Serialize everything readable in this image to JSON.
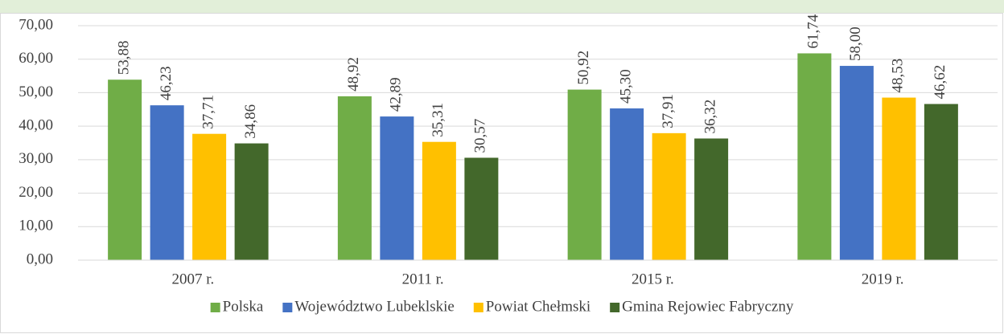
{
  "chart_data": {
    "type": "bar",
    "categories": [
      "2007 r.",
      "2011 r.",
      "2015 r.",
      "2019 r."
    ],
    "series": [
      {
        "name": "Polska",
        "color": "#70ad47",
        "values": [
          53.88,
          48.92,
          50.92,
          61.74
        ],
        "value_labels": [
          "53,88",
          "48,92",
          "50,92",
          "61,74"
        ]
      },
      {
        "name": "Województwo Lubeklskie",
        "color": "#4472c4",
        "values": [
          46.23,
          42.89,
          45.3,
          58.0
        ],
        "value_labels": [
          "46,23",
          "42,89",
          "45,30",
          "58,00"
        ]
      },
      {
        "name": "Powiat Chełmski",
        "color": "#ffc000",
        "values": [
          37.71,
          35.31,
          37.91,
          48.53
        ],
        "value_labels": [
          "37,71",
          "35,31",
          "37,91",
          "48,53"
        ]
      },
      {
        "name": "Gmina Rejowiec Fabryczny",
        "color": "#43682b",
        "values": [
          34.86,
          30.57,
          36.32,
          46.62
        ],
        "value_labels": [
          "34,86",
          "30,57",
          "36,32",
          "46,62"
        ]
      }
    ],
    "ylim": [
      0,
      70
    ],
    "yticks": [
      {
        "value": 0,
        "label": "0,00"
      },
      {
        "value": 10,
        "label": "10,00"
      },
      {
        "value": 20,
        "label": "20,00"
      },
      {
        "value": 30,
        "label": "30,00"
      },
      {
        "value": 40,
        "label": "40,00"
      },
      {
        "value": 50,
        "label": "50,00"
      },
      {
        "value": 60,
        "label": "60,00"
      },
      {
        "value": 70,
        "label": "70,00"
      }
    ],
    "grid": true,
    "legend": "bottom"
  }
}
